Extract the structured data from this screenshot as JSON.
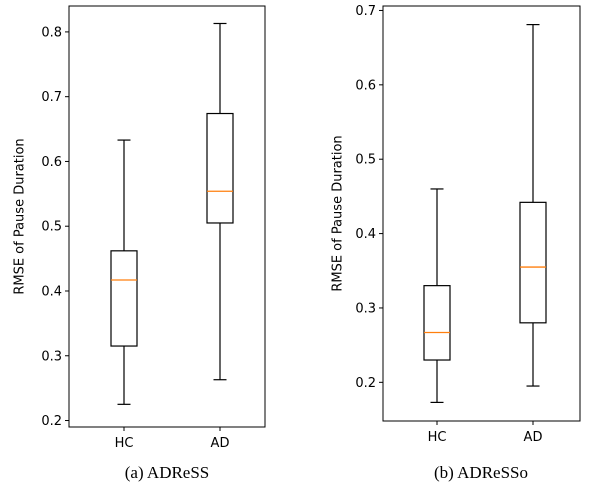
{
  "chart_data": [
    {
      "type": "box",
      "caption": "(a) ADReSS",
      "ylabel": "RMSE of Pause Duration",
      "categories": [
        "HC",
        "AD"
      ],
      "ylim": [
        0.19,
        0.84
      ],
      "yticks": [
        0.2,
        0.3,
        0.4,
        0.5,
        0.6,
        0.7,
        0.8
      ],
      "ytick_labels": [
        "0.2",
        "0.3",
        "0.4",
        "0.5",
        "0.6",
        "0.7",
        "0.8"
      ],
      "boxes": [
        {
          "label": "HC",
          "whisker_low": 0.225,
          "q1": 0.315,
          "median": 0.417,
          "q3": 0.462,
          "whisker_high": 0.633
        },
        {
          "label": "AD",
          "whisker_low": 0.263,
          "q1": 0.505,
          "median": 0.554,
          "q3": 0.674,
          "whisker_high": 0.813
        }
      ]
    },
    {
      "type": "box",
      "caption": "(b) ADReSSo",
      "ylabel": "RMSE of Pause Duration",
      "categories": [
        "HC",
        "AD"
      ],
      "ylim": [
        0.148,
        0.706
      ],
      "yticks": [
        0.2,
        0.3,
        0.4,
        0.5,
        0.6,
        0.7
      ],
      "ytick_labels": [
        "0.2",
        "0.3",
        "0.4",
        "0.5",
        "0.6",
        "0.7"
      ],
      "boxes": [
        {
          "label": "HC",
          "whisker_low": 0.173,
          "q1": 0.23,
          "median": 0.267,
          "q3": 0.33,
          "whisker_high": 0.46
        },
        {
          "label": "AD",
          "whisker_low": 0.195,
          "q1": 0.28,
          "median": 0.355,
          "q3": 0.442,
          "whisker_high": 0.681
        }
      ]
    }
  ],
  "colors": {
    "median": "#ff7f0e",
    "box": "#000000"
  }
}
